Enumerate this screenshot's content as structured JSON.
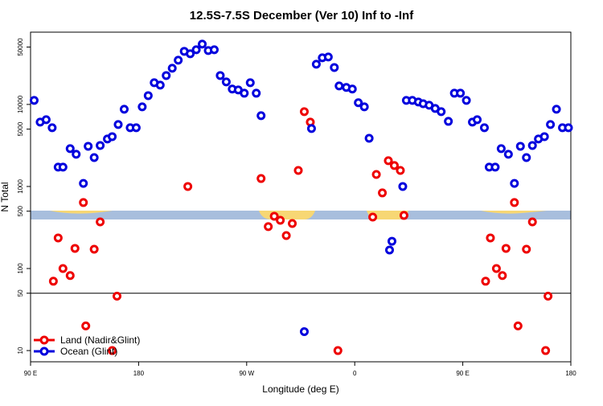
{
  "chart_data": {
    "type": "scatter",
    "title": "12.5S-7.5S December (Ver 10)   Inf to -Inf",
    "x_label": "Longitude (deg E)",
    "y_label": "N Total",
    "log_y": true,
    "legend": "bottom-left",
    "reference_line": 50,
    "xlim": [
      90,
      540
    ],
    "ylim": [
      7.3,
      76000
    ],
    "xticks": [
      {
        "value": 90,
        "label": "90 E"
      },
      180,
      {
        "value": 270,
        "label": "90 W"
      },
      {
        "value": 360,
        "label": "0"
      },
      {
        "value": 450,
        "label": "90 E"
      },
      {
        "value": 540,
        "label": "180"
      }
    ],
    "yticks": [
      10,
      50,
      100,
      500,
      1000,
      5000,
      10000,
      50000
    ],
    "series": [
      {
        "name": "Land (Nadir&Glint)",
        "color": "#ee0000",
        "x": [
          109,
          113,
          117,
          123,
          127,
          134,
          136,
          143,
          148,
          158,
          162,
          221,
          282,
          288,
          293,
          298,
          303,
          308,
          313,
          318,
          323,
          346,
          375,
          378,
          383,
          388,
          393,
          398,
          401,
          469,
          473,
          478,
          483,
          486,
          493,
          496,
          503,
          508,
          519,
          521
        ],
        "values": [
          70,
          236,
          100,
          82,
          176,
          637,
          20,
          172,
          370,
          10,
          46,
          1000,
          1250,
          324,
          434,
          387,
          252,
          354,
          1570,
          8160,
          6090,
          10,
          424,
          1400,
          835,
          2060,
          1800,
          1570,
          444,
          70,
          236,
          100,
          82,
          176,
          637,
          20,
          172,
          370,
          10,
          46
        ]
      },
      {
        "name": "Ocean (Glint)",
        "color": "#0000dd",
        "x": [
          93,
          98,
          103,
          108,
          113,
          117,
          123,
          128,
          134,
          138,
          143,
          148,
          154,
          158,
          163,
          168,
          173,
          178,
          183,
          188,
          193,
          198,
          203,
          208,
          213,
          218,
          223,
          228,
          233,
          238,
          243,
          248,
          253,
          258,
          263,
          268,
          273,
          278,
          282,
          318,
          324,
          328,
          333,
          338,
          343,
          347,
          353,
          358,
          363,
          368,
          372,
          389,
          391,
          400,
          403,
          408,
          413,
          417,
          422,
          427,
          432,
          438,
          443,
          448,
          453,
          458,
          462,
          468,
          472,
          477,
          482,
          488,
          493,
          498,
          503,
          508,
          513,
          518,
          523,
          528,
          533,
          538
        ],
        "values": [
          11200,
          6090,
          6510,
          5200,
          1720,
          1720,
          2890,
          2470,
          1090,
          3090,
          2250,
          3160,
          3790,
          4050,
          5690,
          8730,
          5200,
          5200,
          9350,
          12800,
          18400,
          17200,
          22500,
          27600,
          34600,
          44400,
          41500,
          46400,
          54300,
          45400,
          46400,
          22500,
          18800,
          15400,
          15000,
          13700,
          18400,
          13700,
          7290,
          17,
          5080,
          30900,
          37000,
          37900,
          28200,
          16800,
          16100,
          15400,
          10500,
          9350,
          3870,
          168,
          215,
          1000,
          11200,
          11200,
          10700,
          10200,
          9770,
          8930,
          8160,
          6220,
          13700,
          13700,
          11200,
          6090,
          6510,
          5200,
          1720,
          1720,
          2890,
          2470,
          1090,
          3090,
          2250,
          3160,
          3790,
          4050,
          5690,
          8730,
          5200,
          5200
        ]
      }
    ]
  }
}
